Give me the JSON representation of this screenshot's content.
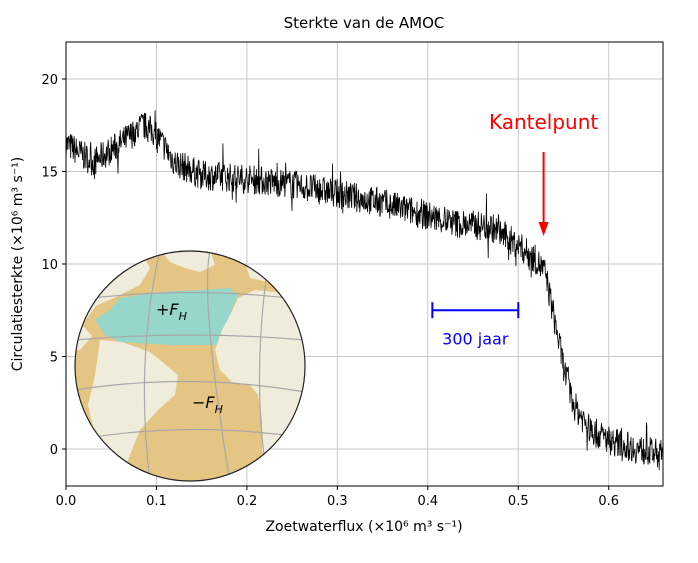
{
  "chart_data": {
    "type": "line",
    "title": "Sterkte van de AMOC",
    "xlabel": "Zoetwaterflux (×10⁶ m³ s⁻¹)",
    "ylabel": "Circulatiesterkte (×10⁶ m³ s⁻¹)",
    "xlim": [
      0,
      0.66
    ],
    "ylim": [
      -2,
      22
    ],
    "xticks": [
      "0.0",
      "0.1",
      "0.2",
      "0.3",
      "0.4",
      "0.5",
      "0.6"
    ],
    "yticks": [
      "0",
      "5",
      "10",
      "15",
      "20"
    ],
    "grid": true,
    "series": [
      {
        "color": "#000000",
        "x": [
          0.0,
          0.03,
          0.06,
          0.085,
          0.1,
          0.12,
          0.15,
          0.2,
          0.25,
          0.3,
          0.35,
          0.4,
          0.43,
          0.47,
          0.5,
          0.52,
          0.53,
          0.54,
          0.55,
          0.56,
          0.58,
          0.6,
          0.63,
          0.66
        ],
        "y": [
          16.5,
          15.5,
          16.5,
          17.5,
          17.0,
          15.5,
          14.8,
          14.6,
          14.3,
          13.8,
          13.3,
          12.6,
          12.2,
          12.0,
          11.0,
          10.2,
          9.5,
          7.0,
          4.5,
          2.5,
          1.0,
          0.5,
          0.0,
          -0.3
        ]
      }
    ],
    "annotations": {
      "tipping_label": "Kantelpunt",
      "tipping_color": "#ff0000",
      "tipping_x": 0.528,
      "scale_bar_label": "300 jaar",
      "scale_bar_color": "#0000ff",
      "scale_bar_x": [
        0.405,
        0.5
      ],
      "scale_bar_y": 7.5
    },
    "inset": {
      "type": "globe",
      "north_label": "+F",
      "north_sub": "H",
      "south_label": "−F",
      "south_sub": "H",
      "ocean_color": "#e5c583",
      "land_color": "#f0ecdc",
      "highlight_color": "#96d6cb"
    }
  }
}
